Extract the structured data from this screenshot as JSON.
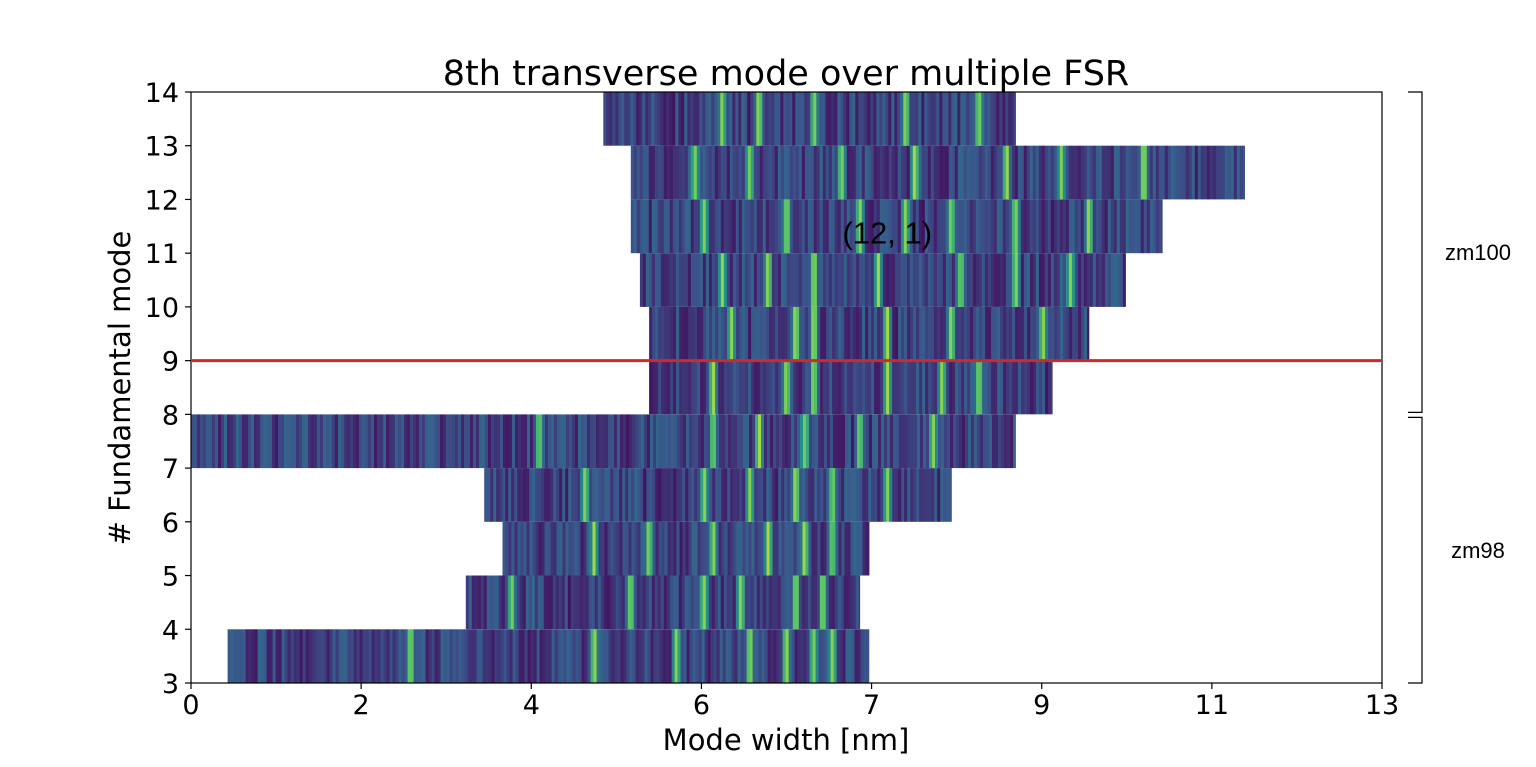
{
  "chart_data": {
    "type": "heatmap",
    "title": "8th transverse mode over multiple FSR",
    "xlabel": "Mode width [nm]",
    "ylabel": "# Fundamental mode",
    "xlim": [
      0,
      13
    ],
    "ylim": [
      3,
      14
    ],
    "x_ticks": [
      "0",
      "2",
      "4",
      "6",
      "7",
      "9",
      "11",
      "13"
    ],
    "y_ticks": [
      "3",
      "4",
      "5",
      "6",
      "7",
      "8",
      "9",
      "10",
      "11",
      "12",
      "13",
      "14"
    ],
    "reference_line": {
      "y": 9,
      "color": "#d62728"
    },
    "annotation": {
      "text": "(12, 1)",
      "x": 7.6,
      "y": 11.4
    },
    "groups": [
      {
        "label": "zm100",
        "y_range": [
          8,
          14
        ]
      },
      {
        "label": "zm98",
        "y_range": [
          3,
          8
        ]
      }
    ],
    "rows": [
      {
        "y0": 3,
        "x_start": 0.4,
        "x_end": 7.4,
        "peaks": [
          2.4,
          4.4,
          5.3,
          6.1,
          6.5,
          6.8,
          7.0
        ]
      },
      {
        "y0": 4,
        "x_start": 3.0,
        "x_end": 7.3,
        "peaks": [
          3.5,
          4.8,
          5.6,
          6.0,
          6.6,
          6.9
        ]
      },
      {
        "y0": 5,
        "x_start": 3.4,
        "x_end": 7.4,
        "peaks": [
          4.4,
          5.0,
          5.7,
          6.3,
          6.7,
          7.0
        ]
      },
      {
        "y0": 6,
        "x_start": 3.2,
        "x_end": 8.3,
        "peaks": [
          4.3,
          5.6,
          6.1,
          6.6,
          7.0,
          7.6
        ]
      },
      {
        "y0": 7,
        "x_start": 0.0,
        "x_end": 9.0,
        "peaks": [
          3.8,
          5.7,
          6.2,
          6.7,
          7.3,
          8.1
        ]
      },
      {
        "y0": 8,
        "x_start": 5.0,
        "x_end": 9.4,
        "peaks": [
          5.7,
          6.5,
          6.8,
          7.6,
          8.2,
          8.6
        ]
      },
      {
        "y0": 9,
        "x_start": 5.0,
        "x_end": 9.8,
        "peaks": [
          5.9,
          6.6,
          6.8,
          7.6,
          8.3,
          9.3
        ]
      },
      {
        "y0": 10,
        "x_start": 4.9,
        "x_end": 10.2,
        "peaks": [
          5.8,
          6.3,
          6.8,
          7.5,
          8.4,
          9.0,
          9.6
        ]
      },
      {
        "y0": 11,
        "x_start": 4.8,
        "x_end": 10.6,
        "peaks": [
          5.6,
          6.5,
          7.3,
          7.8,
          8.3,
          9.0,
          9.8
        ]
      },
      {
        "y0": 12,
        "x_start": 4.8,
        "x_end": 11.5,
        "peaks": [
          5.5,
          6.1,
          7.1,
          7.9,
          8.9,
          9.5,
          10.4
        ]
      },
      {
        "y0": 13,
        "x_start": 4.5,
        "x_end": 9.0,
        "peaks": [
          5.8,
          6.2,
          6.8,
          7.8,
          8.6
        ]
      }
    ],
    "colormap": [
      "#440154",
      "#3b528b",
      "#21918c",
      "#5ec962",
      "#fde725"
    ]
  }
}
